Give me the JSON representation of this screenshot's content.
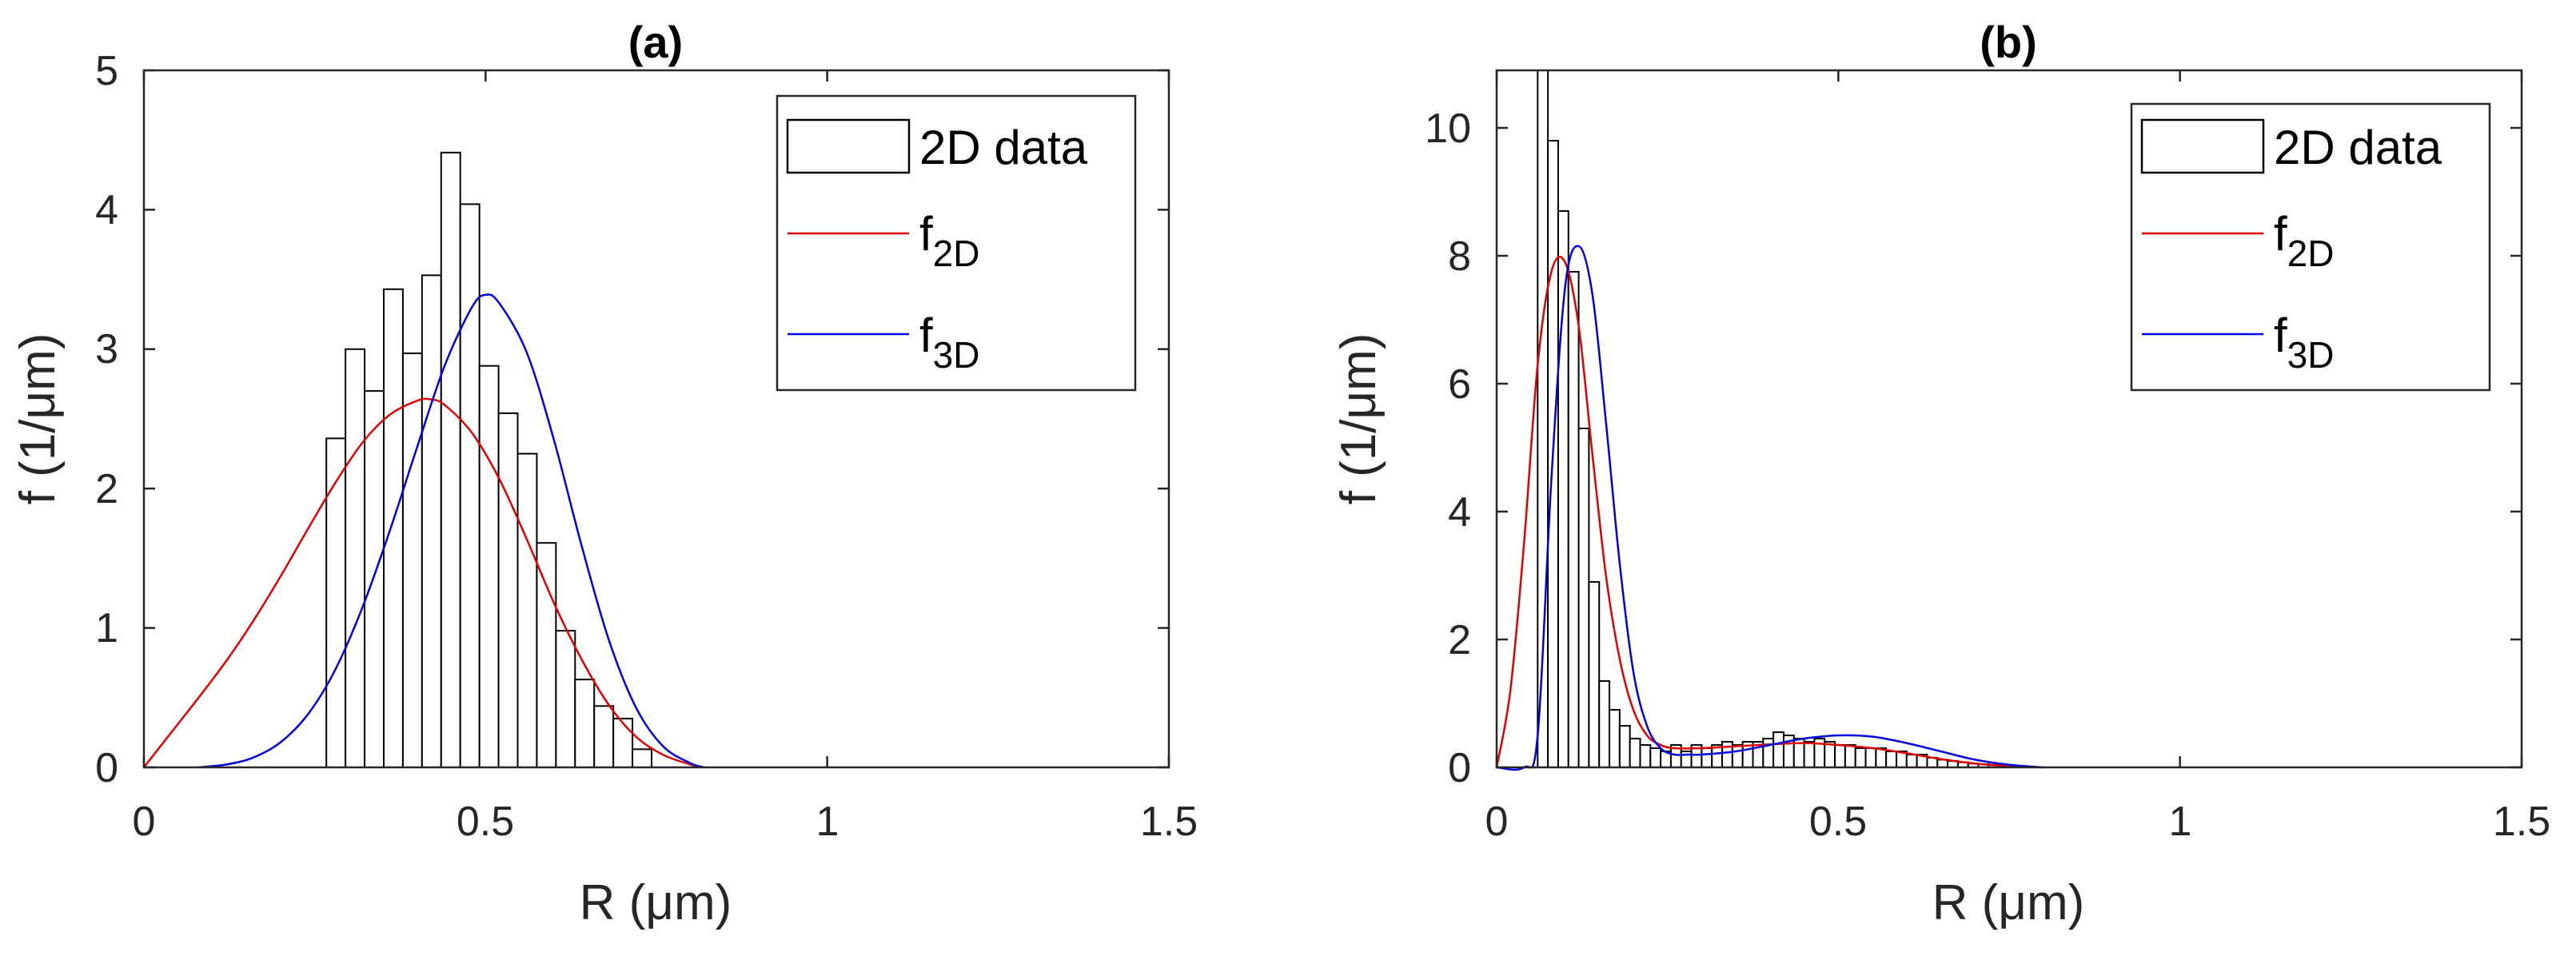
{
  "chart_data": [
    {
      "type": "bar",
      "title": "(a)",
      "xlabel": "R (μm)",
      "ylabel": "f (1/μm)",
      "xlim": [
        0,
        1.5
      ],
      "ylim": [
        0,
        5
      ],
      "xticks": [
        0,
        0.5,
        1,
        1.5
      ],
      "xtick_labels": [
        "0",
        "0.5",
        "1",
        "1.5"
      ],
      "yticks": [
        0,
        1,
        2,
        3,
        4,
        5
      ],
      "ytick_labels": [
        "0",
        "1",
        "2",
        "3",
        "4",
        "5"
      ],
      "histogram": {
        "name": "2D data",
        "bin_edges": [
          0.267,
          0.295,
          0.323,
          0.351,
          0.379,
          0.407,
          0.435,
          0.463,
          0.491,
          0.519,
          0.547,
          0.575,
          0.603,
          0.631,
          0.659,
          0.687,
          0.715,
          0.743
        ],
        "values": [
          2.36,
          3.0,
          2.7,
          3.43,
          2.97,
          3.53,
          4.41,
          4.04,
          2.88,
          2.54,
          2.25,
          1.61,
          0.98,
          0.63,
          0.44,
          0.35,
          0.13
        ]
      },
      "series": [
        {
          "name": "f2D",
          "color": "#e00000",
          "x": [
            0,
            0.04,
            0.08,
            0.12,
            0.16,
            0.2,
            0.24,
            0.28,
            0.32,
            0.36,
            0.4,
            0.42,
            0.44,
            0.48,
            0.52,
            0.56,
            0.6,
            0.64,
            0.68,
            0.72,
            0.76,
            0.8,
            0.82
          ],
          "y": [
            0,
            0.25,
            0.5,
            0.76,
            1.05,
            1.37,
            1.71,
            2.04,
            2.33,
            2.53,
            2.63,
            2.64,
            2.6,
            2.4,
            2.07,
            1.64,
            1.18,
            0.78,
            0.45,
            0.22,
            0.09,
            0.02,
            0
          ]
        },
        {
          "name": "f3D",
          "color": "#0000e0",
          "x": [
            0.08,
            0.12,
            0.16,
            0.2,
            0.24,
            0.28,
            0.32,
            0.36,
            0.4,
            0.44,
            0.48,
            0.5,
            0.52,
            0.56,
            0.6,
            0.64,
            0.68,
            0.72,
            0.76,
            0.8,
            0.82
          ],
          "y": [
            0,
            0.02,
            0.07,
            0.18,
            0.38,
            0.7,
            1.15,
            1.7,
            2.3,
            2.88,
            3.3,
            3.39,
            3.33,
            2.98,
            2.35,
            1.6,
            0.92,
            0.43,
            0.15,
            0.03,
            0
          ]
        }
      ],
      "legend": [
        "2D data",
        "f",
        "2D",
        "f",
        "3D"
      ],
      "legend_position": "top-right"
    },
    {
      "type": "bar",
      "title": "(b)",
      "xlabel": "R (μm)",
      "ylabel": "f (1/μm)",
      "xlim": [
        0,
        1.5
      ],
      "ylim": [
        0,
        10.9
      ],
      "xticks": [
        0,
        0.5,
        1,
        1.5
      ],
      "xtick_labels": [
        "0",
        "0.5",
        "1",
        "1.5"
      ],
      "yticks": [
        0,
        2,
        4,
        6,
        8,
        10
      ],
      "ytick_labels": [
        "0",
        "2",
        "4",
        "6",
        "8",
        "10"
      ],
      "histogram": {
        "name": "2D data",
        "bin_edges": [
          0.06,
          0.075,
          0.09,
          0.105,
          0.12,
          0.135,
          0.15,
          0.165,
          0.18,
          0.195,
          0.21,
          0.225,
          0.24,
          0.255,
          0.27,
          0.285,
          0.3,
          0.315,
          0.33,
          0.345,
          0.36,
          0.375,
          0.39,
          0.405,
          0.42,
          0.435,
          0.45,
          0.465,
          0.48,
          0.495,
          0.51,
          0.525,
          0.54,
          0.555,
          0.57,
          0.585,
          0.6,
          0.615,
          0.63,
          0.645,
          0.66,
          0.675,
          0.69,
          0.705,
          0.72,
          0.735,
          0.75
        ],
        "values": [
          10.9,
          9.8,
          8.7,
          7.75,
          5.3,
          2.9,
          1.35,
          0.9,
          0.65,
          0.45,
          0.35,
          0.3,
          0.25,
          0.35,
          0.25,
          0.35,
          0.3,
          0.35,
          0.4,
          0.35,
          0.4,
          0.4,
          0.45,
          0.55,
          0.5,
          0.45,
          0.4,
          0.45,
          0.4,
          0.35,
          0.35,
          0.3,
          0.3,
          0.3,
          0.25,
          0.25,
          0.2,
          0.2,
          0.15,
          0.12,
          0.1,
          0.08,
          0.06,
          0.05,
          0.04,
          0.03
        ]
      },
      "series": [
        {
          "name": "f2D",
          "color": "#e00000",
          "x": [
            0,
            0.02,
            0.04,
            0.06,
            0.08,
            0.1,
            0.12,
            0.14,
            0.16,
            0.18,
            0.2,
            0.22,
            0.24,
            0.26,
            0.3,
            0.35,
            0.4,
            0.45,
            0.5,
            0.55,
            0.6,
            0.65,
            0.7,
            0.75,
            0.8
          ],
          "y": [
            0,
            1.2,
            3.5,
            6.3,
            7.75,
            7.9,
            6.9,
            4.9,
            3.0,
            1.7,
            0.9,
            0.5,
            0.35,
            0.3,
            0.3,
            0.33,
            0.36,
            0.38,
            0.35,
            0.3,
            0.22,
            0.13,
            0.06,
            0.02,
            0
          ]
        },
        {
          "name": "f3D",
          "color": "#0000e0",
          "x": [
            0,
            0.04,
            0.06,
            0.08,
            0.1,
            0.12,
            0.14,
            0.16,
            0.18,
            0.2,
            0.22,
            0.24,
            0.26,
            0.28,
            0.3,
            0.35,
            0.4,
            0.45,
            0.5,
            0.55,
            0.6,
            0.65,
            0.7,
            0.75,
            0.8
          ],
          "y": [
            0,
            0,
            0.5,
            4.5,
            7.5,
            8.15,
            7.4,
            5.4,
            3.2,
            1.5,
            0.65,
            0.3,
            0.2,
            0.2,
            0.2,
            0.25,
            0.35,
            0.45,
            0.5,
            0.48,
            0.38,
            0.25,
            0.12,
            0.04,
            0
          ]
        }
      ],
      "legend": [
        "2D data",
        "f",
        "2D",
        "f",
        "3D"
      ],
      "legend_position": "top-right"
    }
  ]
}
